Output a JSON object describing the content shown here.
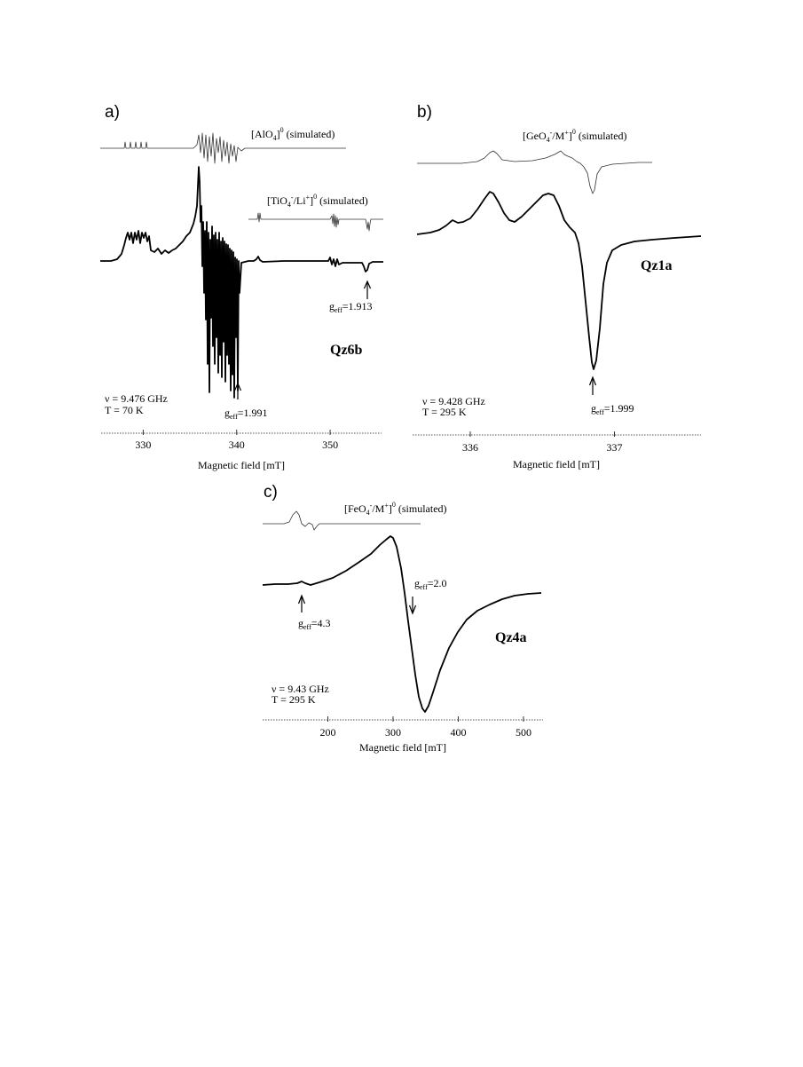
{
  "chart_data": [
    {
      "type": "line",
      "panel_label": "a)",
      "sample": "Qz6b",
      "conditions": [
        "ν = 9.476 GHz",
        "T = 70 K"
      ],
      "xlabel": "Magnetic field [mT]",
      "xlim": [
        325.5,
        355.5
      ],
      "xticks": [
        330,
        340,
        350
      ],
      "xtick_labels": [
        "330",
        "340",
        "350"
      ],
      "simulated": [
        {
          "name": "[AlO",
          "sub": "4",
          "sup": "0",
          "tail": " (simulated)"
        },
        {
          "name": "[TiO",
          "sub": "4",
          "sup": "-",
          "mid": "/Li",
          "sup2": "+",
          "close": "]",
          "sup3": "0",
          "tail": " (simulated)"
        }
      ],
      "annotations": [
        {
          "g": "g",
          "sub": "eff",
          "text": "=1.991",
          "field": 340.0
        },
        {
          "g": "g",
          "sub": "eff",
          "text": "=1.913",
          "field": 353.5
        }
      ]
    },
    {
      "type": "line",
      "panel_label": "b)",
      "sample": "Qz1a",
      "conditions": [
        "ν = 9.428 GHz",
        "T = 295 K"
      ],
      "xlabel": "Magnetic field [mT]",
      "xlim": [
        335.6,
        337.6
      ],
      "xticks": [
        336,
        337
      ],
      "xtick_labels": [
        "336",
        "337"
      ],
      "simulated": [
        {
          "name": "[GeO",
          "sub": "4",
          "sup": "-",
          "mid": "/M",
          "sup2": "+",
          "close": "]",
          "sup3": "0",
          "tail": " (simulated)"
        }
      ],
      "annotations": [
        {
          "g": "g",
          "sub": "eff",
          "text": "=1.999",
          "field": 336.9
        }
      ]
    },
    {
      "type": "line",
      "panel_label": "c)",
      "sample": "Qz4a",
      "conditions": [
        "ν = 9.43 GHz",
        "T = 295 K"
      ],
      "xlabel": "Magnetic field [mT]",
      "xlim": [
        100,
        530
      ],
      "xticks": [
        200,
        300,
        400,
        500
      ],
      "xtick_labels": [
        "200",
        "300",
        "400",
        "500"
      ],
      "simulated": [
        {
          "name": "[FeO",
          "sub": "4",
          "sup": "-",
          "mid": "/M",
          "sup2": "+",
          "close": "]",
          "sup3": "0",
          "tail": " (simulated)"
        }
      ],
      "annotations": [
        {
          "g": "g",
          "sub": "eff",
          "text": "=4.3",
          "field": 160
        },
        {
          "g": "g",
          "sub": "eff",
          "text": "=2.0",
          "field": 330
        }
      ]
    }
  ]
}
